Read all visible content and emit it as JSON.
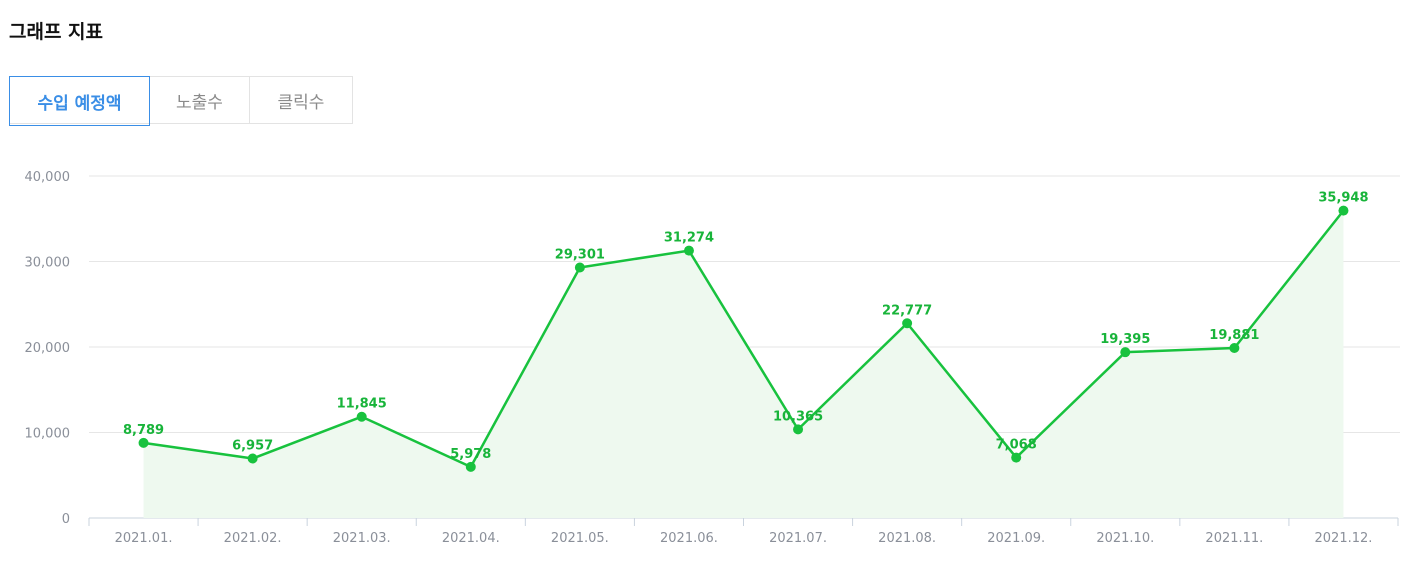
{
  "page": {
    "title": "그래프 지표"
  },
  "tabs": [
    {
      "label": "수입 예정액",
      "active": true
    },
    {
      "label": "노출수",
      "active": false
    },
    {
      "label": "클릭수",
      "active": false
    }
  ],
  "colors": {
    "line": "#18c23e",
    "area": "#eef9ef",
    "accent": "#3a8ee6",
    "grid": "#e6e6e6"
  },
  "chart_data": {
    "type": "line",
    "categories": [
      "2021.01.",
      "2021.02.",
      "2021.03.",
      "2021.04.",
      "2021.05.",
      "2021.06.",
      "2021.07.",
      "2021.08.",
      "2021.09.",
      "2021.10.",
      "2021.11.",
      "2021.12."
    ],
    "values": [
      8789,
      6957,
      11845,
      5978,
      29301,
      31274,
      10365,
      22777,
      7068,
      19395,
      19881,
      35948
    ],
    "value_labels": [
      "8,789",
      "6,957",
      "11,845",
      "5,978",
      "29,301",
      "31,274",
      "10,365",
      "22,777",
      "7,068",
      "19,395",
      "19,881",
      "35,948"
    ],
    "ylim": [
      0,
      40000
    ],
    "y_ticks": [
      0,
      10000,
      20000,
      30000,
      40000
    ],
    "y_tick_labels": [
      "0",
      "10,000",
      "20,000",
      "30,000",
      "40,000"
    ],
    "grid": true,
    "area_fill": true
  }
}
